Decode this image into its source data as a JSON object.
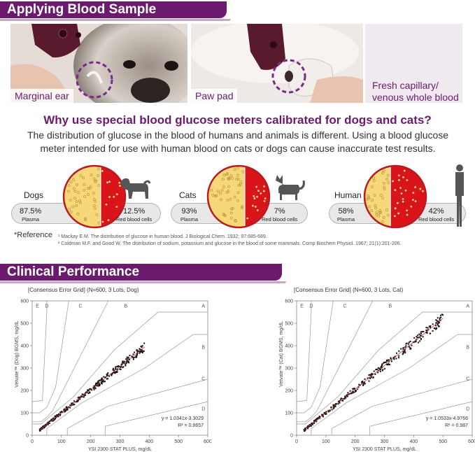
{
  "banners": {
    "top": "Applying Blood Sample",
    "bottom": "Clinical Performance"
  },
  "photos": [
    {
      "caption": "Marginal ear"
    },
    {
      "caption": "Paw pad"
    },
    {
      "caption_lines": [
        "Fresh capillary/",
        "venous whole blood"
      ]
    }
  ],
  "headline": "Why use special blood glucose meters calibrated for dogs and cats?",
  "intro": "The distribution of glucose in the blood of humans and animals is different. Using a blood glucose meter intended for use with human blood on cats or dogs can cause inaccurate test results.",
  "species": [
    {
      "name": "Dogs",
      "plasma_pct": "87.5%",
      "plasma_label": "Plasma",
      "rbc_pct": "12.5%",
      "rbc_label": "Red blood cells"
    },
    {
      "name": "Cats",
      "plasma_pct": "93%",
      "plasma_label": "Plasma",
      "rbc_pct": "7%",
      "rbc_label": "Red blood cells"
    },
    {
      "name": "Human",
      "plasma_pct": "58%",
      "plasma_label": "Plasma",
      "rbc_pct": "42%",
      "rbc_label": "Red blood cells"
    }
  ],
  "reference": {
    "label": "*Reference",
    "items": [
      "¹ Mackay E.M. The distribution of glucose in human blood. J Biological Chem. 1932; 97:685-689.",
      "² Coldman M.F. and Good W. The distribution of sodium, potassium and glucose in the blood of some mammals. Comp Biochem Physiol. 1967; 21(1):201-206."
    ]
  },
  "colors": {
    "brand_purple": "#6b1a6e",
    "plasma_yellow": "#f6d878",
    "rbc_red": "#d9141b",
    "regression_red": "#c0392b"
  },
  "chart_data": [
    {
      "type": "scatter",
      "title": "[Consensus Error Grid] (N=600, 3 Lots, Dog)",
      "xlabel": "YSI 2300 STAT PLUS, mg/dL",
      "ylabel": "Vetvate™ (Dog) BGMS, mg/dL",
      "xlim": [
        0,
        600
      ],
      "ylim": [
        0,
        600
      ],
      "xticks": [
        0,
        100,
        200,
        300,
        400,
        500,
        600
      ],
      "yticks": [
        0,
        100,
        200,
        300,
        400,
        500,
        600
      ],
      "zones": [
        "A",
        "B",
        "C",
        "D",
        "E"
      ],
      "regression": {
        "slope": 1.0341,
        "intercept": -3.3029,
        "equation": "y = 1.0341x-3.3029",
        "r2": "R² = 0.9657"
      },
      "x_range": [
        25,
        385
      ],
      "seed": 11
    },
    {
      "type": "scatter",
      "title": "[Consensus Error Grid] (N=600, 3 Lots, Cat)",
      "xlabel": "YSI 2300 STAT PLUS, mg/dL",
      "ylabel": "Vetvate™ (Cat) BGMS, mg/dL",
      "xlim": [
        0,
        600
      ],
      "ylim": [
        0,
        600
      ],
      "xticks": [
        0,
        100,
        200,
        300,
        400,
        500,
        600
      ],
      "yticks": [
        0,
        100,
        200,
        300,
        400,
        500,
        600
      ],
      "zones": [
        "A",
        "B",
        "C",
        "D",
        "E"
      ],
      "regression": {
        "slope": 1.0533,
        "intercept": -4.9766,
        "equation": "y = 1.0533x-4.9766",
        "r2": "R² = 0.987"
      },
      "x_range": [
        25,
        500
      ],
      "seed": 29
    }
  ]
}
